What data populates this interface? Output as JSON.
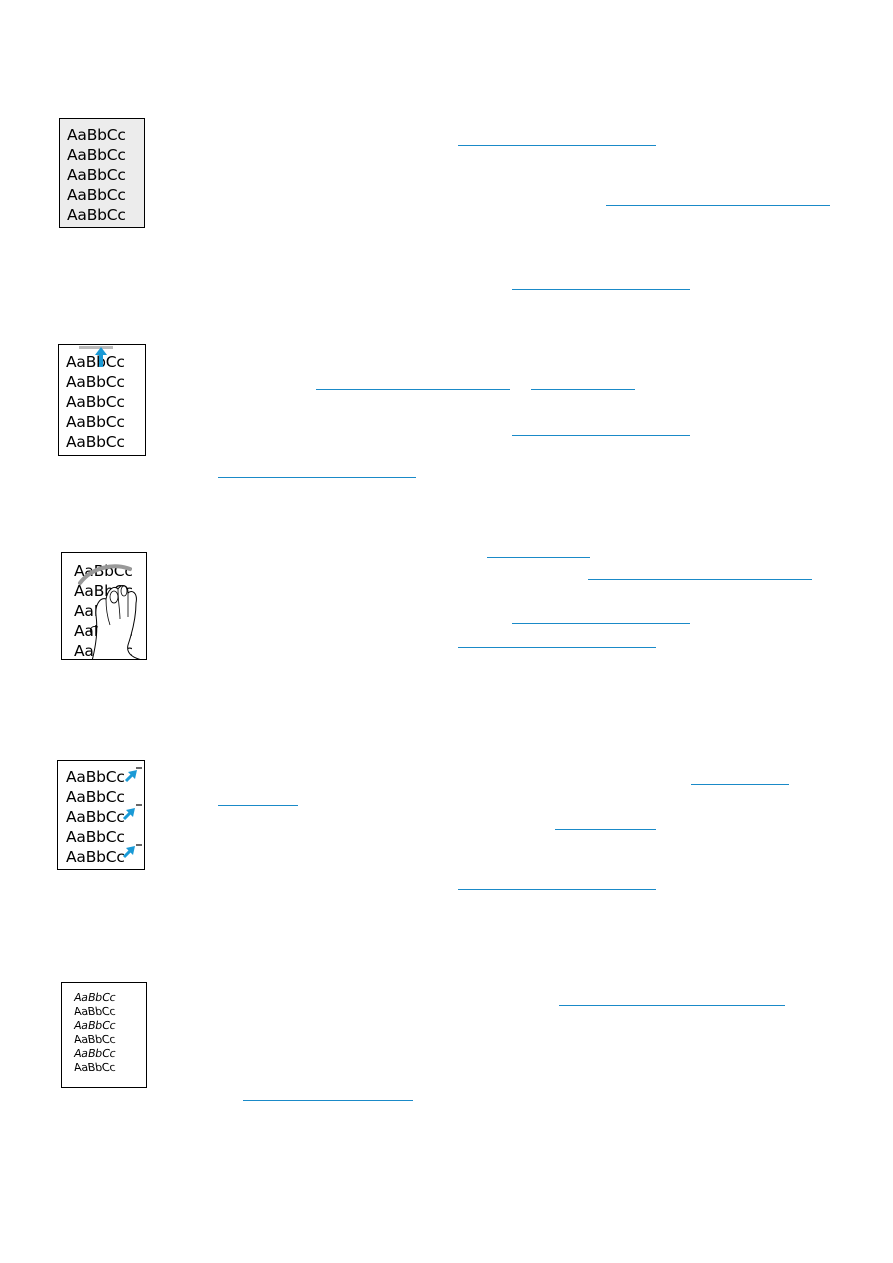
{
  "samples": [
    {
      "id": "gray-background",
      "lines": [
        "AaBbCc",
        "AaBbCc",
        "AaBbCc",
        "AaBbCc",
        "AaBbCc"
      ]
    },
    {
      "id": "toner-smear",
      "lines": [
        "AaBbCc",
        "AaBbCc",
        "AaBbCc",
        "AaBbCc",
        "AaBbCc"
      ]
    },
    {
      "id": "loose-toner",
      "lines": [
        "AaBbCc",
        "AaBbCc",
        "AaBbCc",
        "AaBbCc",
        "AaBbCc"
      ]
    },
    {
      "id": "repetitive-defects",
      "lines": [
        "AaBbCc",
        "AaBbCc",
        "AaBbCc",
        "AaBbCc",
        "AaBbCc"
      ]
    },
    {
      "id": "misformed-characters",
      "lines": [
        "AaBbCc",
        "AaBbCc",
        "AaBbCc",
        "AaBbCc",
        "AaBbCc",
        "AaBbCc"
      ]
    }
  ],
  "colors": {
    "link": "#1a8ac8",
    "sample_gray_bg": "#ececec",
    "defect_cyan": "#1a9ad6"
  },
  "icons": [
    "arrow-up-icon",
    "hand-icon",
    "arrow-diagonal-icon"
  ]
}
